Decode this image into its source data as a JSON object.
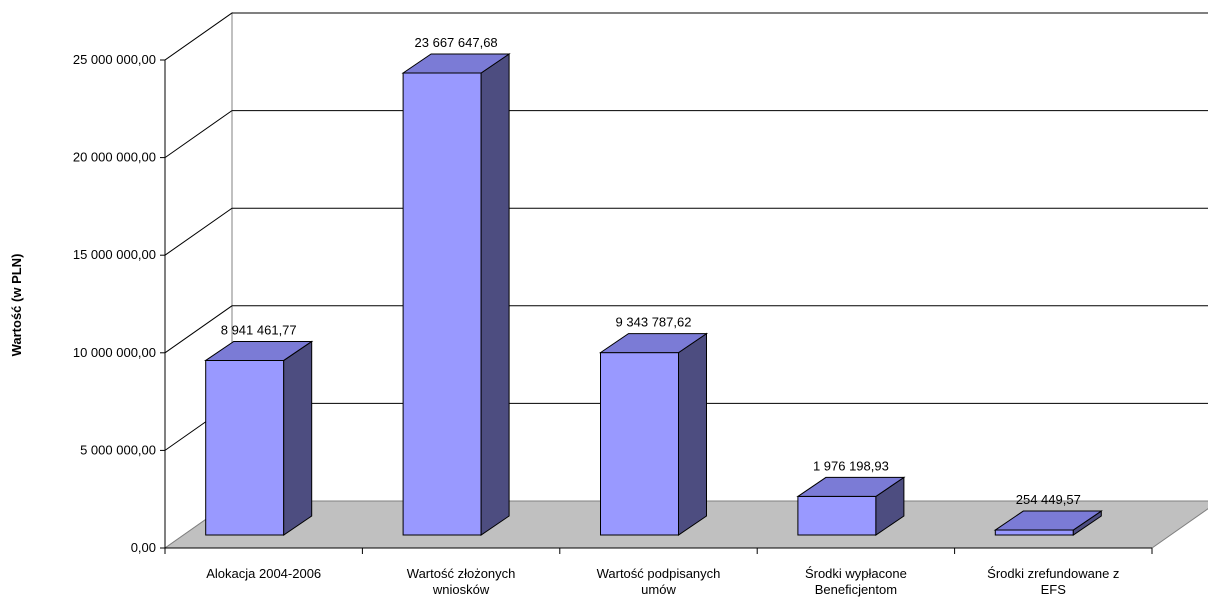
{
  "chart_data": {
    "type": "bar",
    "title": "",
    "xlabel": "",
    "ylabel": "Wartość (w PLN)",
    "ylim": [
      0,
      25000000
    ],
    "yticks": [
      {
        "value": 0,
        "label": "0,00"
      },
      {
        "value": 5000000,
        "label": "5 000 000,00"
      },
      {
        "value": 10000000,
        "label": "10 000 000,00"
      },
      {
        "value": 15000000,
        "label": "15 000 000,00"
      },
      {
        "value": 20000000,
        "label": "20 000 000,00"
      },
      {
        "value": 25000000,
        "label": "25 000 000,00"
      }
    ],
    "categories": [
      [
        "Alokacja 2004-2006"
      ],
      [
        "Wartość złożonych",
        "wniosków"
      ],
      [
        "Wartość podpisanych",
        "umów"
      ],
      [
        "Środki wypłacone",
        "Beneficjentom"
      ],
      [
        "Środki zrefundowane z",
        "EFS"
      ]
    ],
    "values": [
      8941461.77,
      23667647.68,
      9343787.62,
      1976198.93,
      254449.57
    ],
    "data_labels": [
      "8 941 461,77",
      "23 667 647,68",
      "9 343 787,62",
      "1 976 198,93",
      "254 449,57"
    ],
    "grid": true,
    "legend": "none",
    "three_d": true,
    "colors": {
      "bar_front": "#9999ff",
      "bar_top": "#7b7bd6",
      "bar_side": "#4d4d80",
      "floor": "#c0c0c0",
      "gridline": "#000000"
    }
  }
}
